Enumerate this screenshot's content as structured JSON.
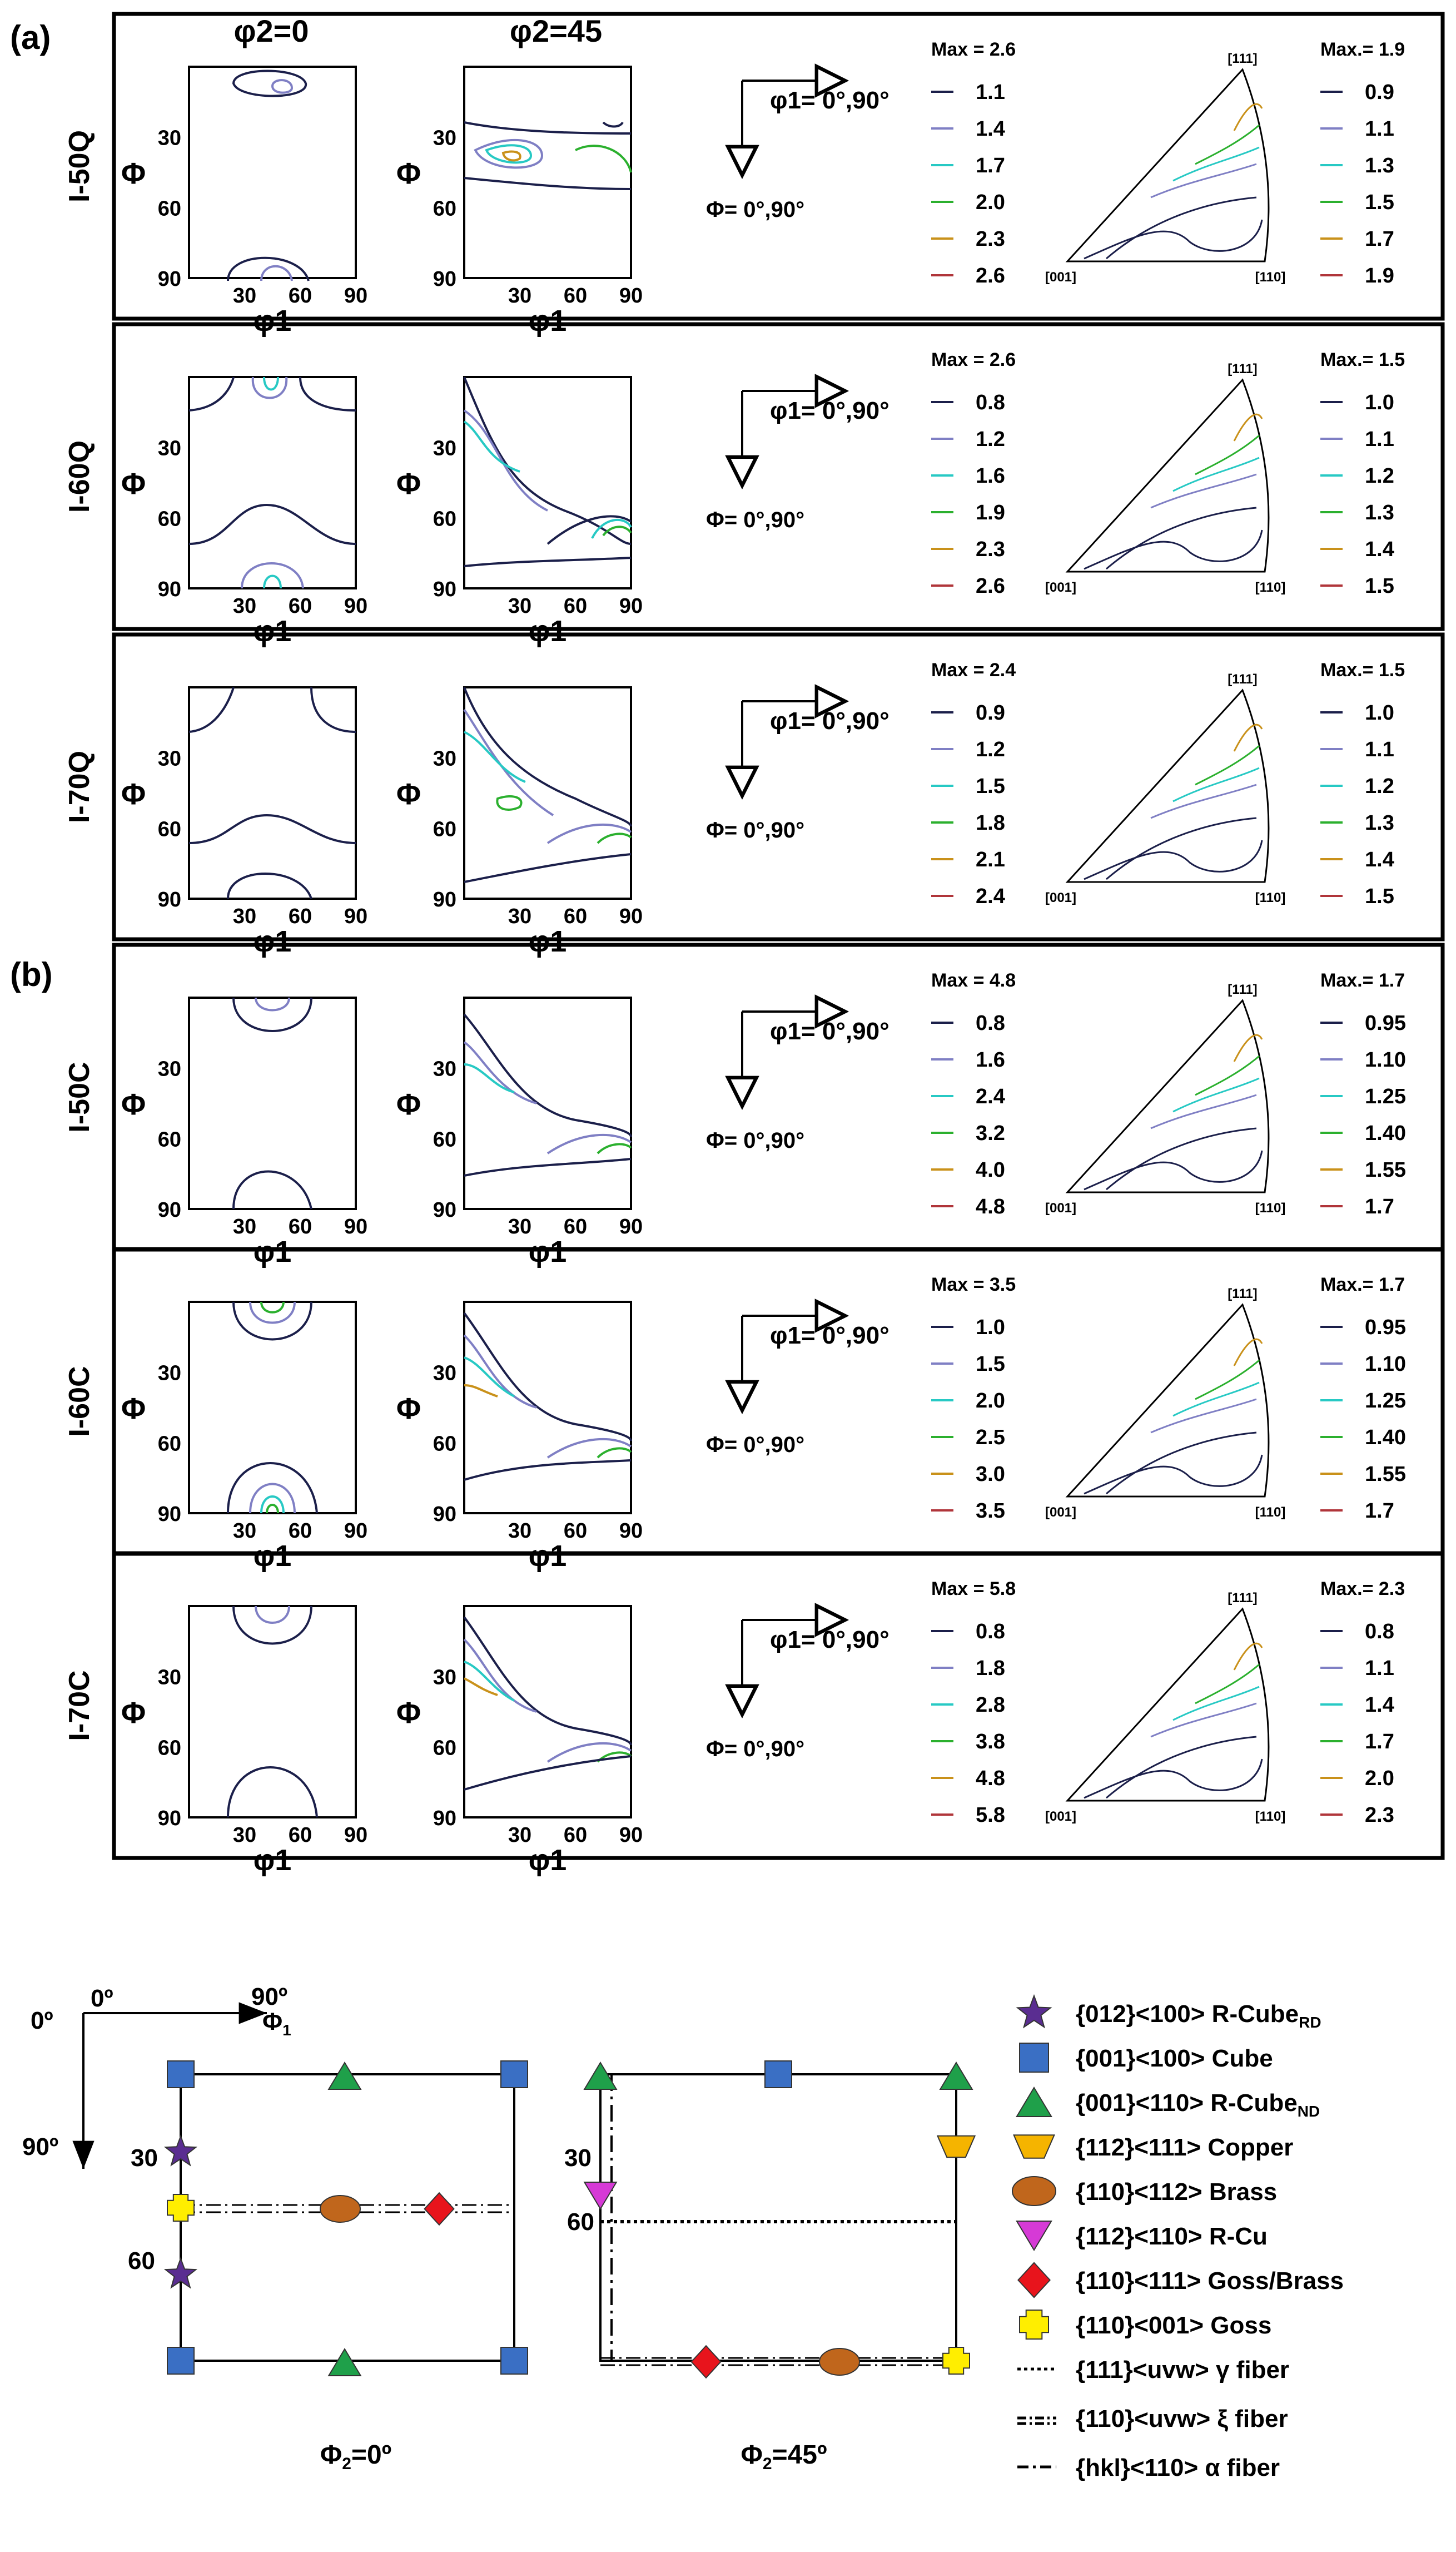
{
  "panel_labels": {
    "a": "(a)",
    "b": "(b)"
  },
  "column_headers": {
    "phi2_0": "φ2=0",
    "phi2_45": "φ2=45"
  },
  "axes": {
    "x_label": "φ1",
    "y_label": "Φ",
    "x_ticks": [
      "30",
      "60",
      "90"
    ],
    "y_ticks": [
      "30",
      "60",
      "90"
    ]
  },
  "ipf_corners": {
    "top": "[111]",
    "left": "[001]",
    "right": "[110]"
  },
  "arrows": {
    "phi1": "φ1= 0°,90°",
    "Phi": "Φ= 0°,90°"
  },
  "odf_palette": [
    "#1b1f4a",
    "#7f7fc4",
    "#27c9c4",
    "#2bb02e",
    "#c9911a",
    "#b0353a"
  ],
  "rows": [
    {
      "name": "I-50Q",
      "odf_max_label": "Max = 2.6",
      "odf_levels": [
        "1.1",
        "1.4",
        "1.7",
        "2.0",
        "2.3",
        "2.6"
      ],
      "ipf_max_label": "Max.= 1.9",
      "ipf_levels": [
        "0.9",
        "1.1",
        "1.3",
        "1.5",
        "1.7",
        "1.9"
      ]
    },
    {
      "name": "I-60Q",
      "odf_max_label": "Max = 2.6",
      "odf_levels": [
        "0.8",
        "1.2",
        "1.6",
        "1.9",
        "2.3",
        "2.6"
      ],
      "ipf_max_label": "Max.= 1.5",
      "ipf_levels": [
        "1.0",
        "1.1",
        "1.2",
        "1.3",
        "1.4",
        "1.5"
      ]
    },
    {
      "name": "I-70Q",
      "odf_max_label": "Max = 2.4",
      "odf_levels": [
        "0.9",
        "1.2",
        "1.5",
        "1.8",
        "2.1",
        "2.4"
      ],
      "ipf_max_label": "Max.= 1.5",
      "ipf_levels": [
        "1.0",
        "1.1",
        "1.2",
        "1.3",
        "1.4",
        "1.5"
      ]
    },
    {
      "name": "I-50C",
      "odf_max_label": "Max = 4.8",
      "odf_levels": [
        "0.8",
        "1.6",
        "2.4",
        "3.2",
        "4.0",
        "4.8"
      ],
      "ipf_max_label": "Max.= 1.7",
      "ipf_levels": [
        "0.95",
        "1.10",
        "1.25",
        "1.40",
        "1.55",
        "1.7"
      ]
    },
    {
      "name": "I-60C",
      "odf_max_label": "Max = 3.5",
      "odf_levels": [
        "1.0",
        "1.5",
        "2.0",
        "2.5",
        "3.0",
        "3.5"
      ],
      "ipf_max_label": "Max.= 1.7",
      "ipf_levels": [
        "0.95",
        "1.10",
        "1.25",
        "1.40",
        "1.55",
        "1.7"
      ]
    },
    {
      "name": "I-70C",
      "odf_max_label": "Max = 5.8",
      "odf_levels": [
        "0.8",
        "1.8",
        "2.8",
        "3.8",
        "4.8",
        "5.8"
      ],
      "ipf_max_label": "Max.= 2.3",
      "ipf_levels": [
        "0.8",
        "1.1",
        "1.4",
        "1.7",
        "2.0",
        "2.3"
      ]
    }
  ],
  "key_diagram": {
    "origin_0": "0º",
    "origin_90": "90º",
    "phi1_axis": "Φ",
    "phi1_sub": "1",
    "down_90": "90º",
    "tick_30": "30",
    "tick_60": "60",
    "caption_left": "Φ",
    "caption_left_sub": "2",
    "caption_left_rest": "=0º",
    "caption_right": "Φ",
    "caption_right_sub": "2",
    "caption_right_rest": "=45º"
  },
  "legend": [
    {
      "symbol": "star",
      "color": "#5a2d91",
      "label": "{012}<100> R-Cube",
      "sub": "RD"
    },
    {
      "symbol": "square",
      "color": "#3a6fc4",
      "label": "{001}<100> Cube",
      "sub": ""
    },
    {
      "symbol": "triangle",
      "color": "#1fa04a",
      "label": "{001}<110> R-Cube",
      "sub": "ND"
    },
    {
      "symbol": "trapezoid",
      "color": "#f5b400",
      "label": "{112}<111> Copper",
      "sub": ""
    },
    {
      "symbol": "ellipse",
      "color": "#c0661c",
      "label": "{110}<112> Brass",
      "sub": ""
    },
    {
      "symbol": "inv-triangle",
      "color": "#d63ad6",
      "label": "{112}<110> R-Cu",
      "sub": ""
    },
    {
      "symbol": "diamond",
      "color": "#e8141c",
      "label": "{110}<111> Goss/Brass",
      "sub": ""
    },
    {
      "symbol": "cross",
      "color": "#ffee00",
      "label": "{110}<001> Goss",
      "sub": ""
    },
    {
      "symbol": "dotted-line",
      "color": "#000000",
      "label": "{111}<uvw> γ fiber",
      "sub": ""
    },
    {
      "symbol": "dashdot2-line",
      "color": "#000000",
      "label": "{110}<uvw> ξ fiber",
      "sub": ""
    },
    {
      "symbol": "dashdot-line",
      "color": "#000000",
      "label": "{hkl}<110> α fiber",
      "sub": ""
    }
  ]
}
